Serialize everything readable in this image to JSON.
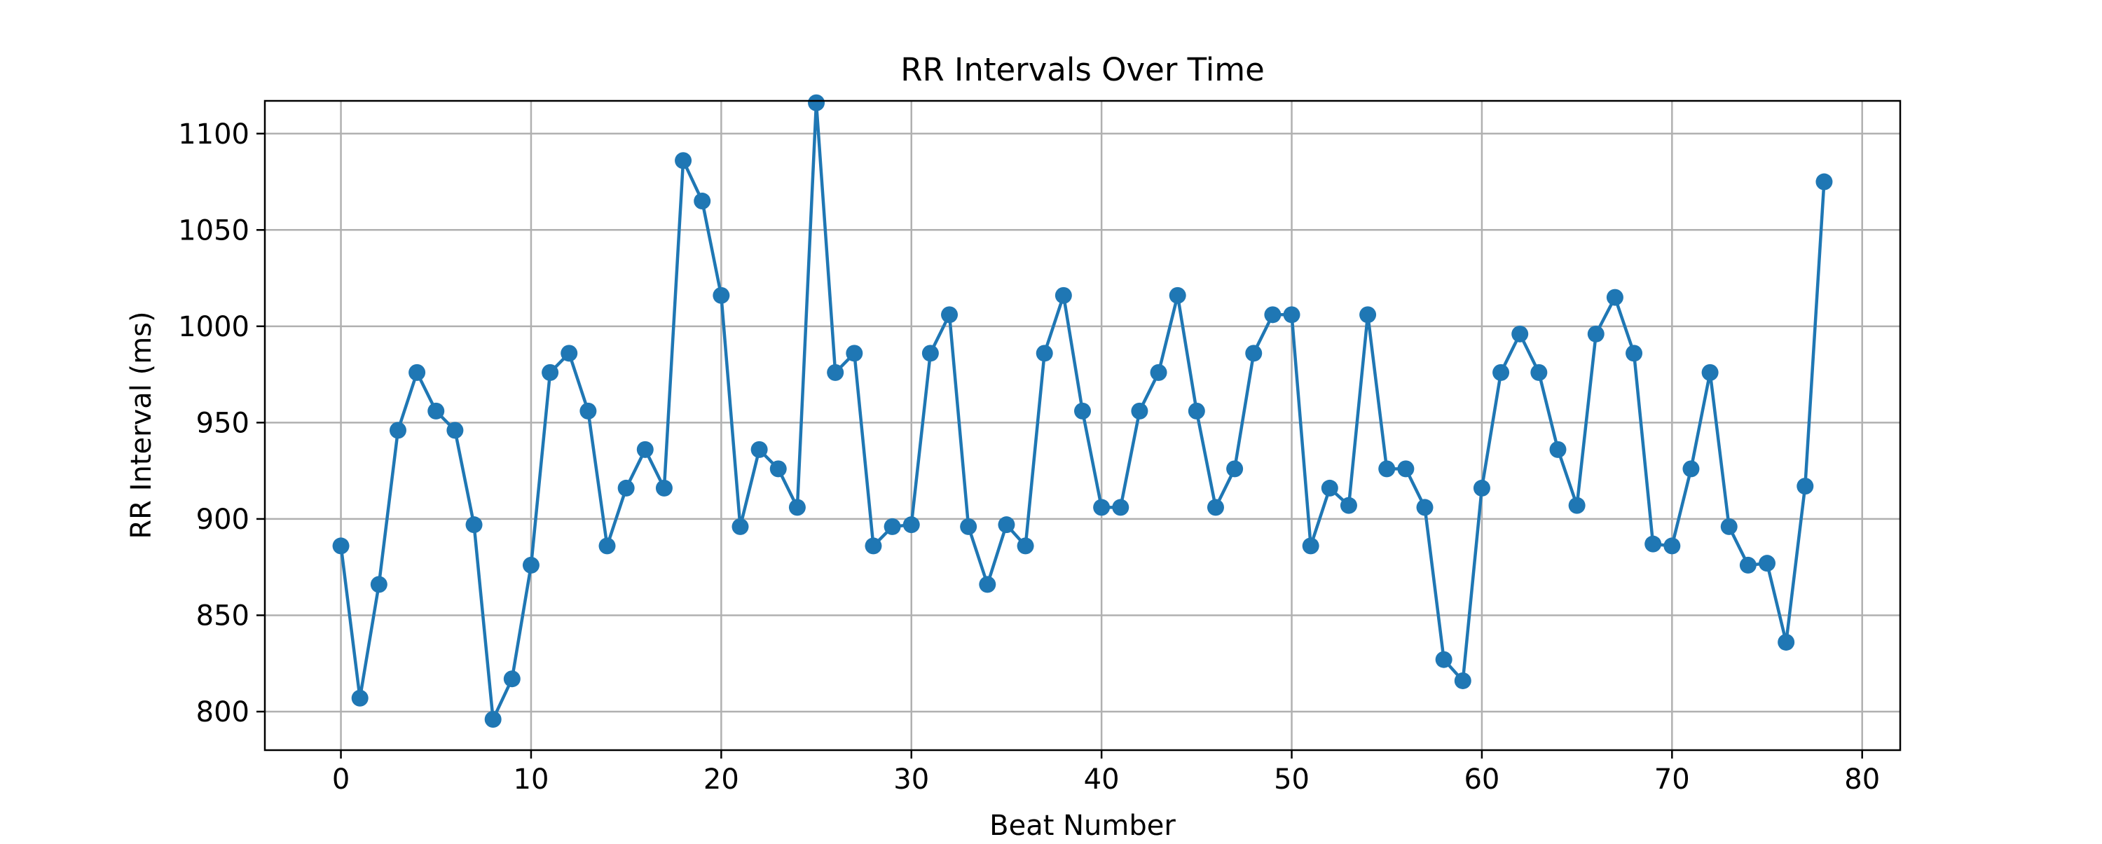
{
  "chart_data": {
    "type": "line",
    "title": "RR Intervals Over Time",
    "xlabel": "Beat Number",
    "ylabel": "RR Interval (ms)",
    "xlim": [
      -4,
      82
    ],
    "ylim": [
      780,
      1117
    ],
    "x_ticks": [
      0,
      10,
      20,
      30,
      40,
      50,
      60,
      70,
      80
    ],
    "y_ticks": [
      800,
      850,
      900,
      950,
      1000,
      1050,
      1100
    ],
    "grid": true,
    "markers": true,
    "series": [
      {
        "x": [
          0,
          1,
          2,
          3,
          4,
          5,
          6,
          7,
          8,
          9,
          10,
          11,
          12,
          13,
          14,
          15,
          16,
          17,
          18,
          19,
          20,
          21,
          22,
          23,
          24,
          25,
          26,
          27,
          28,
          29,
          30,
          31,
          32,
          33,
          34,
          35,
          36,
          37,
          38,
          39,
          40,
          41,
          42,
          43,
          44,
          45,
          46,
          47,
          48,
          49,
          50,
          51,
          52,
          53,
          54,
          55,
          56,
          57,
          58,
          59,
          60,
          61,
          62,
          63,
          64,
          65,
          66,
          67,
          68,
          69,
          70,
          71,
          72,
          73,
          74,
          75,
          76,
          77,
          78
        ],
        "values": [
          886,
          807,
          866,
          946,
          976,
          956,
          946,
          897,
          796,
          817,
          876,
          976,
          986,
          956,
          886,
          916,
          936,
          916,
          1086,
          1065,
          1016,
          896,
          936,
          926,
          906,
          1116,
          976,
          986,
          886,
          896,
          897,
          986,
          1006,
          896,
          866,
          897,
          886,
          986,
          1016,
          956,
          906,
          906,
          956,
          976,
          1016,
          956,
          906,
          926,
          986,
          1006,
          1006,
          886,
          916,
          907,
          1006,
          926,
          926,
          906,
          827,
          816,
          916,
          976,
          996,
          976,
          936,
          907,
          996,
          1015,
          986,
          887,
          886,
          926,
          976,
          896,
          876,
          877,
          836,
          917,
          1075
        ]
      }
    ],
    "colors": {
      "line": "#1f77b4",
      "marker": "#1f77b4",
      "grid": "#b0b0b0",
      "axes": "#000000"
    }
  }
}
